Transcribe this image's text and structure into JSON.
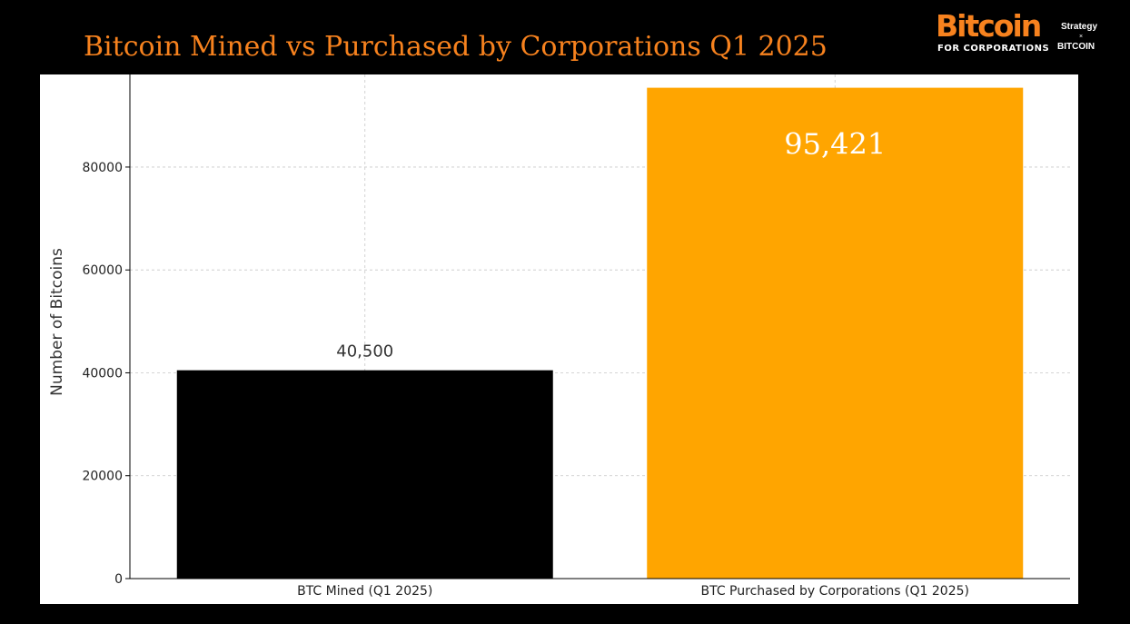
{
  "page": {
    "title": "Bitcoin Mined vs Purchased by Corporations Q1 2025",
    "title_color": "#f7821e",
    "background": "#000000"
  },
  "logo": {
    "word": "Bitcoin",
    "sub": "FOR CORPORATIONS",
    "partner_top": "Strategy",
    "partner_x": "×",
    "partner_bottom": "BITCOIN"
  },
  "chart_data": {
    "type": "bar",
    "title": "",
    "xlabel": "",
    "ylabel": "Number of Bitcoins",
    "categories": [
      "BTC Mined (Q1 2025)",
      "BTC Purchased by Corporations (Q1 2025)"
    ],
    "values": [
      40500,
      95421
    ],
    "data_labels": [
      "40,500",
      "95,421"
    ],
    "bar_colors": [
      "#000000",
      "#ffa500"
    ],
    "ylim": [
      0,
      98000
    ],
    "yticks": [
      0,
      20000,
      40000,
      60000,
      80000
    ],
    "grid": true
  }
}
